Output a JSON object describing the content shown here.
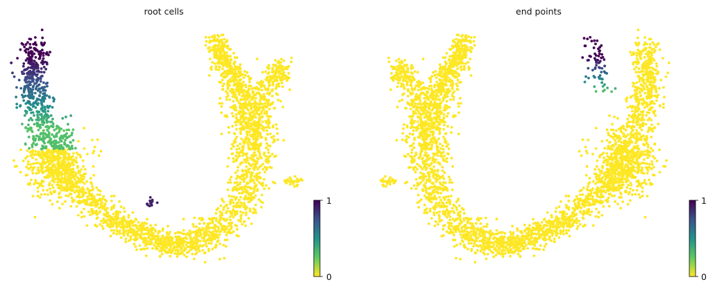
{
  "figure": {
    "panels": [
      {
        "title": "root cells",
        "colorbar": {
          "tick_top": "1",
          "tick_bottom": "0"
        }
      },
      {
        "title": "end points",
        "colorbar": {
          "tick_top": "1",
          "tick_bottom": "0"
        }
      }
    ]
  },
  "chart_data": [
    {
      "type": "scatter",
      "title": "root cells",
      "xlabel": "",
      "ylabel": "",
      "grid": false,
      "axes_visible": false,
      "colormap": "viridis_r",
      "color_range": [
        0,
        1
      ],
      "colorbar_ticks": [
        0,
        1
      ],
      "colorbar_placement": "right",
      "background_value": 0,
      "background_color": "#fde725",
      "description_of_high_regions": [
        {
          "region": "left upper arm (top-left lobe)",
          "value_range": [
            0.3,
            1.0
          ]
        },
        {
          "region": "small cluster near bottom center",
          "value_range": [
            0.8,
            1.0
          ]
        }
      ]
    },
    {
      "type": "scatter",
      "title": "end points",
      "xlabel": "",
      "ylabel": "",
      "grid": false,
      "axes_visible": false,
      "colormap": "viridis_r",
      "color_range": [
        0,
        1
      ],
      "colorbar_ticks": [
        0,
        1
      ],
      "colorbar_placement": "right",
      "background_value": 0,
      "background_color": "#fde725",
      "description_of_high_regions": [
        {
          "region": "top of right arm",
          "value_range": [
            0.3,
            1.0
          ]
        }
      ]
    }
  ],
  "colors": {
    "low": "#fde725",
    "mid": "#21918c",
    "high": "#440154"
  }
}
